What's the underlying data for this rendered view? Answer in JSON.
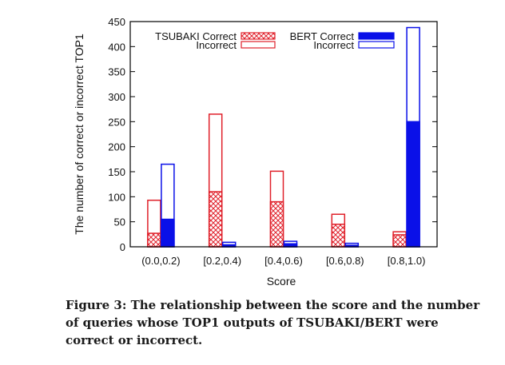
{
  "chart_data": {
    "type": "bar",
    "categories": [
      "(0.0,0.2)",
      "[0.2,0.4)",
      "[0.4,0.6)",
      "[0.6,0.8)",
      "[0.8,1.0)"
    ],
    "series": [
      {
        "name": "TSUBAKI Correct",
        "values": [
          27,
          110,
          90,
          45,
          24
        ]
      },
      {
        "name": "TSUBAKI Incorrect",
        "values": [
          66,
          155,
          61,
          20,
          6
        ]
      },
      {
        "name": "BERT Correct",
        "values": [
          55,
          4,
          6,
          3,
          250
        ]
      },
      {
        "name": "BERT Incorrect",
        "values": [
          110,
          5,
          5,
          4,
          188
        ]
      }
    ],
    "stacked": true,
    "xlabel": "Score",
    "ylabel": "The number of correct or incorrect TOP1",
    "ylim": [
      0,
      450
    ],
    "yticks": [
      0,
      50,
      100,
      150,
      200,
      250,
      300,
      350,
      400,
      450
    ],
    "grid": false,
    "legend_position": "top",
    "legend": {
      "tsubaki_label": "TSUBAKI Correct",
      "bert_label": "BERT Correct",
      "incorrect_label": "Incorrect"
    },
    "colors": {
      "tsubaki": "#e0202a",
      "bert": "#0a10e8"
    }
  },
  "caption": "Figure 3: The relationship between the score and the number of queries whose TOP1 outputs of TSUBAKI/BERT were correct or incorrect."
}
